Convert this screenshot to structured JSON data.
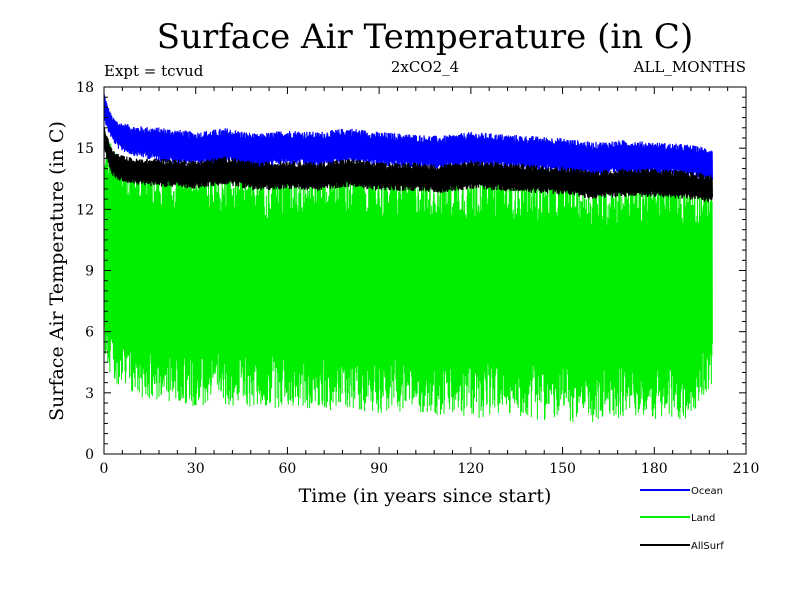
{
  "chart_data": {
    "type": "line",
    "title": "Surface Air Temperature (in C)",
    "subtitle_left": "Expt = tcvud",
    "subtitle_center": "2xCO2_4",
    "subtitle_right": "ALL_MONTHS",
    "xlabel": "Time (in years since start)",
    "ylabel": "Surface Air Temperature (in C)",
    "xlim": [
      0,
      210
    ],
    "ylim": [
      0,
      18
    ],
    "xticks": [
      "0",
      "30",
      "60",
      "90",
      "120",
      "150",
      "180",
      "210"
    ],
    "yticks": [
      "0",
      "3",
      "6",
      "9",
      "12",
      "15",
      "18"
    ],
    "grid": false,
    "legend_position": "bottom-right",
    "x_range": [
      0,
      199
    ],
    "series": [
      {
        "name": "Ocean",
        "color": "#0000ff",
        "x": [
          0,
          1,
          2,
          3,
          5,
          10,
          20,
          30,
          40,
          50,
          60,
          70,
          80,
          90,
          100,
          110,
          120,
          130,
          140,
          150,
          160,
          170,
          180,
          190,
          199
        ],
        "max": [
          17.8,
          17.2,
          16.8,
          16.5,
          16.3,
          16.1,
          16.0,
          15.8,
          16.0,
          15.7,
          15.9,
          15.8,
          16.0,
          15.8,
          15.7,
          15.6,
          15.8,
          15.7,
          15.6,
          15.5,
          15.3,
          15.4,
          15.3,
          15.2,
          15.0
        ],
        "min": [
          16.5,
          15.9,
          15.6,
          15.3,
          14.9,
          14.6,
          14.3,
          14.1,
          14.2,
          14.0,
          14.2,
          14.0,
          14.3,
          14.1,
          14.0,
          13.9,
          14.1,
          14.0,
          13.9,
          13.8,
          13.6,
          13.7,
          13.7,
          13.6,
          13.4
        ]
      },
      {
        "name": "Land",
        "color": "#00ee00",
        "x": [
          0,
          1,
          2,
          3,
          5,
          10,
          20,
          30,
          40,
          50,
          60,
          70,
          80,
          90,
          100,
          110,
          120,
          130,
          140,
          150,
          160,
          170,
          180,
          190,
          199
        ],
        "max": [
          15.2,
          15.8,
          15.3,
          14.9,
          14.6,
          14.4,
          14.3,
          14.2,
          14.4,
          14.1,
          14.3,
          14.1,
          14.4,
          14.2,
          14.1,
          14.0,
          14.2,
          14.1,
          14.0,
          13.9,
          13.7,
          13.8,
          13.8,
          13.7,
          13.5
        ],
        "min": [
          5.0,
          4.6,
          3.8,
          3.4,
          3.0,
          2.8,
          2.5,
          2.3,
          2.4,
          2.2,
          2.3,
          2.1,
          2.2,
          2.0,
          2.1,
          1.8,
          1.7,
          1.9,
          1.7,
          1.6,
          1.4,
          1.8,
          1.7,
          1.5,
          3.4
        ]
      },
      {
        "name": "AllSurf",
        "color": "#000000",
        "x": [
          0,
          1,
          2,
          3,
          5,
          10,
          20,
          30,
          40,
          50,
          60,
          70,
          80,
          90,
          100,
          110,
          120,
          130,
          140,
          150,
          160,
          170,
          180,
          190,
          199
        ],
        "max": [
          16.2,
          15.6,
          15.2,
          14.9,
          14.7,
          14.5,
          14.5,
          14.4,
          14.6,
          14.3,
          14.4,
          14.3,
          14.5,
          14.3,
          14.3,
          14.2,
          14.4,
          14.3,
          14.2,
          14.1,
          13.9,
          14.0,
          14.0,
          13.9,
          13.7
        ],
        "min": [
          15.0,
          14.3,
          13.9,
          13.6,
          13.4,
          13.2,
          13.1,
          13.0,
          13.2,
          12.9,
          13.0,
          12.9,
          13.1,
          12.9,
          12.9,
          12.8,
          13.0,
          12.9,
          12.8,
          12.7,
          12.5,
          12.6,
          12.6,
          12.5,
          12.3
        ]
      }
    ]
  }
}
